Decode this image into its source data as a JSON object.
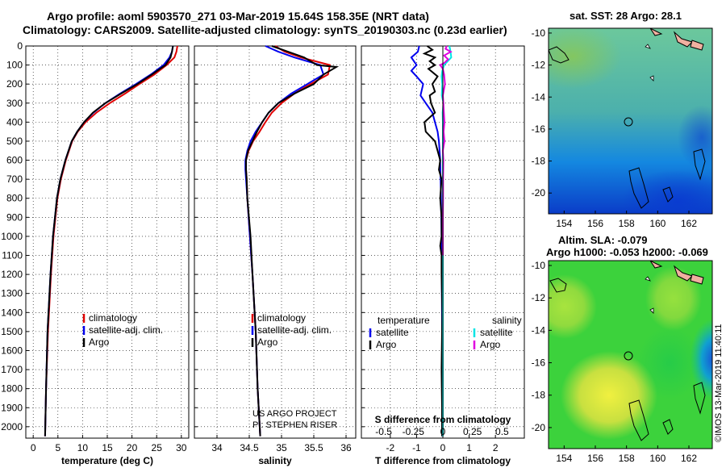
{
  "titles": {
    "line1": "Argo profile: aoml 5903570_271 03-Mar-2019 15.64S 158.35E (NRT data)",
    "line2": "Climatology: CARS2009. Satellite-adjusted climatology: synTS_20190303.nc (0.23d earlier)",
    "map1": "sat. SST: 28 Argo: 28.1",
    "map2a": "Altim. SLA: -0.079",
    "map2b": "Argo h1000: -0.053 h2000: -0.069",
    "credit": "©IMOS 13-Mar-2019 11:40:11",
    "project1": "US ARGO PROJECT",
    "project2": "PI: STEPHEN RISER"
  },
  "colors": {
    "climatology": "#e00000",
    "satellite": "#0000ee",
    "argo": "#000000",
    "sat_salinity": "#00e5e5",
    "argo_salinity": "#e000e0"
  },
  "depth_axis": {
    "ticks": [
      0,
      100,
      200,
      300,
      400,
      500,
      600,
      700,
      800,
      900,
      1000,
      1100,
      1200,
      1300,
      1400,
      1500,
      1600,
      1700,
      1800,
      1900,
      2000
    ],
    "range": [
      0,
      2060
    ]
  },
  "chart_data": [
    {
      "type": "line",
      "name": "temperature-panel",
      "xlabel": "temperature (deg C)",
      "ylabel": "depth (dbar)",
      "xlim": [
        -1.5,
        31.5
      ],
      "xticks": [
        0,
        5,
        10,
        15,
        20,
        25,
        30
      ],
      "legend": {
        "position": "lower-right",
        "entries": [
          "climatology",
          "satellite-adj. clim.",
          "Argo"
        ]
      },
      "series": [
        {
          "name": "climatology",
          "color": "#e00000",
          "depth": [
            0,
            30,
            60,
            100,
            150,
            200,
            250,
            300,
            350,
            400,
            450,
            500,
            600,
            700,
            800,
            1000,
            1200,
            1500,
            1800,
            2050
          ],
          "values": [
            29.2,
            29,
            28.6,
            27,
            24.5,
            21.5,
            18.6,
            15.5,
            12.8,
            10.6,
            9.0,
            7.9,
            6.6,
            5.6,
            4.9,
            4.1,
            3.6,
            3.0,
            2.6,
            2.4
          ]
        },
        {
          "name": "satellite-adj. clim.",
          "color": "#0000ee",
          "depth": [
            0,
            30,
            60,
            100,
            150,
            200,
            250,
            300,
            350,
            400,
            450,
            500,
            600,
            700,
            800,
            1000,
            1200,
            1500,
            1800,
            2050
          ],
          "values": [
            28.3,
            28.1,
            27.6,
            26.4,
            23.8,
            20.8,
            17.6,
            14.6,
            12.2,
            10.3,
            8.9,
            7.8,
            6.5,
            5.5,
            4.8,
            4.0,
            3.5,
            2.9,
            2.6,
            2.4
          ]
        },
        {
          "name": "Argo",
          "color": "#000000",
          "depth": [
            0,
            30,
            60,
            100,
            150,
            200,
            250,
            300,
            350,
            400,
            450,
            500,
            600,
            700,
            800,
            1000,
            1200,
            1500,
            1800,
            2050
          ],
          "values": [
            28.3,
            28.1,
            27.8,
            26.8,
            24,
            21.1,
            17.8,
            14.6,
            12.1,
            10.3,
            8.9,
            7.8,
            6.5,
            5.5,
            4.8,
            4.0,
            3.5,
            2.9,
            2.6,
            2.4
          ]
        }
      ]
    },
    {
      "type": "line",
      "name": "salinity-panel",
      "xlabel": "salinity",
      "ylabel": "depth (dbar)",
      "xlim": [
        33.65,
        36.15
      ],
      "xticks": [
        34,
        34.5,
        35,
        35.5,
        36
      ],
      "legend": {
        "position": "lower-right",
        "entries": [
          "climatology",
          "satellite-adj. clim.",
          "Argo"
        ]
      },
      "series": [
        {
          "name": "climatology",
          "color": "#e00000",
          "depth": [
            0,
            30,
            60,
            100,
            150,
            200,
            250,
            300,
            350,
            400,
            450,
            500,
            550,
            600,
            650,
            700,
            800,
            1000,
            1200,
            1500,
            1800,
            2050
          ],
          "values": [
            34.9,
            35.05,
            35.3,
            35.75,
            35.72,
            35.45,
            35.2,
            35.0,
            34.85,
            34.75,
            34.66,
            34.56,
            34.49,
            34.45,
            34.45,
            34.46,
            34.47,
            34.51,
            34.55,
            34.6,
            34.63,
            34.67
          ]
        },
        {
          "name": "satellite-adj. clim.",
          "color": "#0000ee",
          "depth": [
            0,
            30,
            60,
            100,
            150,
            200,
            250,
            300,
            350,
            400,
            450,
            500,
            550,
            600,
            650,
            700,
            800,
            1000,
            1200,
            1500,
            1800,
            2050
          ],
          "values": [
            34.75,
            34.95,
            35.2,
            35.6,
            35.65,
            35.4,
            35.15,
            34.95,
            34.8,
            34.7,
            34.6,
            34.52,
            34.47,
            34.44,
            34.44,
            34.45,
            34.47,
            34.51,
            34.55,
            34.6,
            34.63,
            34.67
          ]
        },
        {
          "name": "Argo",
          "color": "#000000",
          "depth": [
            0,
            30,
            60,
            100,
            110,
            150,
            200,
            250,
            300,
            350,
            400,
            450,
            500,
            550,
            600,
            650,
            700,
            800,
            1000,
            1200,
            1500,
            1800,
            2050
          ],
          "values": [
            34.85,
            35.1,
            35.35,
            35.55,
            35.85,
            35.65,
            35.5,
            35.2,
            34.95,
            34.8,
            34.7,
            34.62,
            34.55,
            34.48,
            34.45,
            34.45,
            34.46,
            34.47,
            34.52,
            34.55,
            34.6,
            34.63,
            34.67
          ]
        }
      ]
    },
    {
      "type": "line",
      "name": "difference-panel",
      "xlabel": "T difference from climatology",
      "x2label": "S difference from climatology",
      "xlim": [
        -3.1,
        3.1
      ],
      "xticks": [
        -2,
        -1,
        0,
        1,
        2
      ],
      "x2ticks": [
        -0.5,
        -0.25,
        0,
        0.25,
        0.5
      ],
      "x2tick_labels": [
        "-0.5",
        "-0.25",
        "0",
        "0.25",
        "0.5"
      ],
      "legend": {
        "temperature_header": "temperature",
        "salinity_header": "salinity",
        "entries": [
          "satellite",
          "Argo",
          "satellite",
          "Argo"
        ]
      },
      "series": [
        {
          "name": "T satellite",
          "color": "#0000ee",
          "depth": [
            0,
            30,
            60,
            100,
            130,
            160,
            200,
            260,
            300,
            350,
            400,
            450,
            500,
            600,
            800,
            1000,
            1200,
            1500,
            2050
          ],
          "values": [
            -0.9,
            -0.95,
            -1.2,
            -1.0,
            -1.2,
            -1.0,
            -0.75,
            -0.85,
            -0.65,
            -0.4,
            -0.3,
            -0.2,
            -0.15,
            -0.1,
            -0.07,
            -0.05,
            -0.04,
            -0.03,
            -0.02
          ]
        },
        {
          "name": "T Argo",
          "color": "#000000",
          "depth": [
            0,
            20,
            40,
            60,
            80,
            100,
            120,
            160,
            200,
            240,
            260,
            300,
            350,
            400,
            450,
            500,
            550,
            600,
            650,
            700,
            800,
            900,
            1000,
            1050,
            1100,
            1200,
            1400,
            1700,
            1900,
            2050
          ],
          "values": [
            -0.6,
            -0.4,
            -0.7,
            -0.3,
            -0.5,
            -0.3,
            -0.55,
            -0.2,
            -0.4,
            -0.3,
            -0.5,
            -0.45,
            -0.3,
            -0.7,
            -0.65,
            -0.3,
            -0.2,
            -0.1,
            -0.15,
            -0.05,
            -0.1,
            -0.05,
            -0.05,
            -0.1,
            -0.05,
            -0.05,
            -0.02,
            -0.05,
            -0.03,
            -0.03
          ]
        },
        {
          "name": "S satellite",
          "color": "#00e5e5",
          "depth": [
            0,
            20,
            40,
            60,
            80,
            100,
            130,
            160,
            200,
            260,
            300,
            350,
            400,
            500,
            700,
            1000,
            1500,
            2050
          ],
          "values": [
            0.25,
            0.28,
            0.3,
            0.32,
            0.18,
            0.05,
            -0.02,
            -0.05,
            -0.02,
            -0.04,
            0.02,
            -0.01,
            0.0,
            0.0,
            0.0,
            0.0,
            0.0,
            0.0
          ]
        },
        {
          "name": "S Argo",
          "color": "#e000e0",
          "depth": [
            0,
            15,
            30,
            50,
            70,
            90,
            100,
            120,
            150,
            200,
            260,
            300,
            350,
            400,
            450,
            500,
            550,
            600,
            700,
            800,
            900,
            1000,
            1100
          ],
          "values": [
            0.15,
            0.1,
            0.3,
            0.05,
            0.2,
            0.05,
            -0.1,
            0.0,
            0.05,
            0.08,
            0.0,
            0.02,
            0.04,
            0.06,
            0.03,
            0.06,
            0.0,
            0.02,
            0.01,
            0.01,
            0.0,
            0.0,
            0.0
          ]
        }
      ]
    },
    {
      "type": "heatmap",
      "name": "sst-map",
      "title": "sat. SST: 28 Argo: 28.1",
      "xticks": [
        154,
        156,
        158,
        160,
        162
      ],
      "yticks": [
        -10,
        -12,
        -14,
        -16,
        -18,
        -20
      ],
      "xlim": [
        153,
        163.5
      ],
      "ylim": [
        -21.3,
        -9.7
      ],
      "argo_position": {
        "lon": 158.35,
        "lat": -15.64
      }
    },
    {
      "type": "heatmap",
      "name": "sla-map",
      "title": "Altim. SLA: -0.079 / Argo h1000: -0.053 h2000: -0.069",
      "xticks": [
        154,
        156,
        158,
        160,
        162
      ],
      "yticks": [
        -10,
        -12,
        -14,
        -16,
        -18,
        -20
      ],
      "xlim": [
        153,
        163.5
      ],
      "ylim": [
        -21.3,
        -9.7
      ],
      "argo_position": {
        "lon": 158.35,
        "lat": -15.64
      }
    }
  ]
}
